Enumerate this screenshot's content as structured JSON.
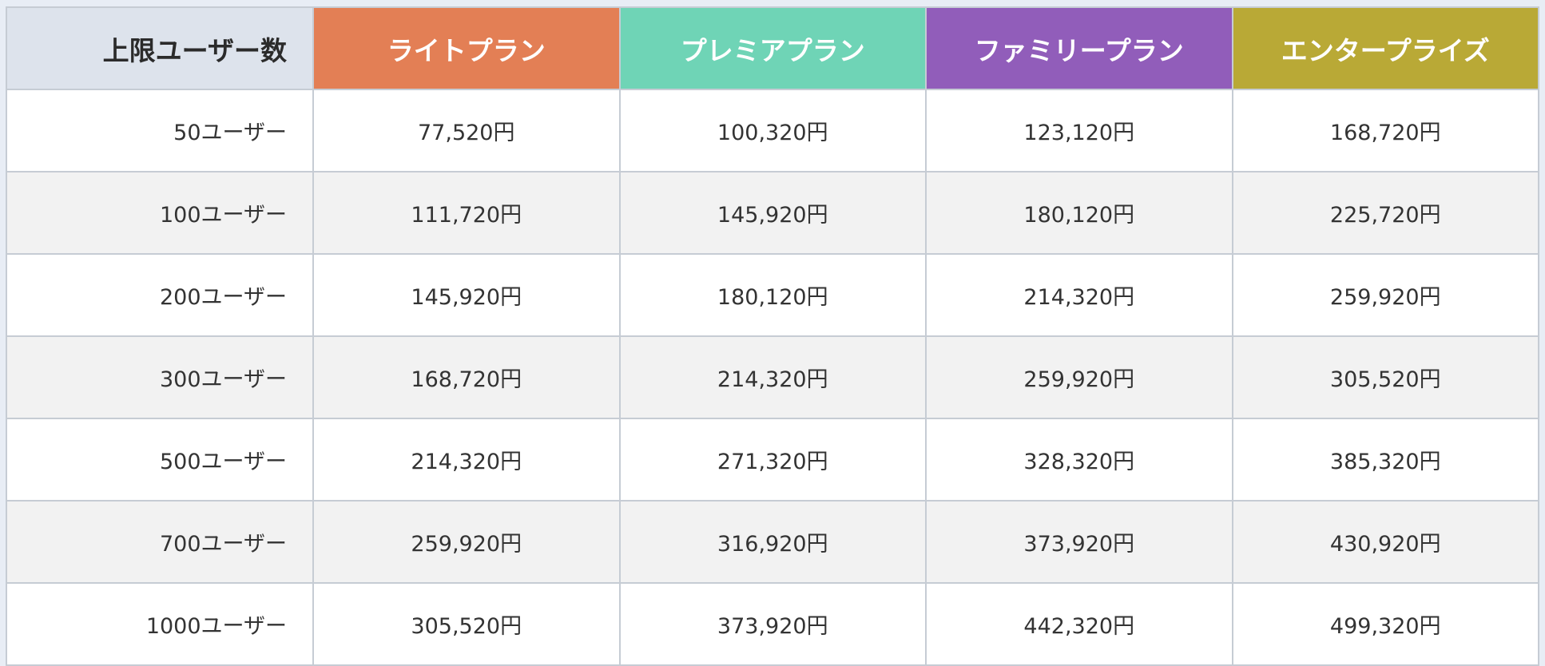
{
  "table": {
    "corner_header": "上限ユーザー数",
    "plans": [
      {
        "name": "ライトプラン",
        "color": "#e37f55"
      },
      {
        "name": "プレミアプラン",
        "color": "#6fd4b6"
      },
      {
        "name": "ファミリープラン",
        "color": "#915dba"
      },
      {
        "name": "エンタープライズ",
        "color": "#b9a936"
      }
    ],
    "rows": [
      {
        "label": "50ユーザー",
        "prices": [
          "77,520円",
          "100,320円",
          "123,120円",
          "168,720円"
        ]
      },
      {
        "label": "100ユーザー",
        "prices": [
          "111,720円",
          "145,920円",
          "180,120円",
          "225,720円"
        ]
      },
      {
        "label": "200ユーザー",
        "prices": [
          "145,920円",
          "180,120円",
          "214,320円",
          "259,920円"
        ]
      },
      {
        "label": "300ユーザー",
        "prices": [
          "168,720円",
          "214,320円",
          "259,920円",
          "305,520円"
        ]
      },
      {
        "label": "500ユーザー",
        "prices": [
          "214,320円",
          "271,320円",
          "328,320円",
          "385,320円"
        ]
      },
      {
        "label": "700ユーザー",
        "prices": [
          "259,920円",
          "316,920円",
          "373,920円",
          "430,920円"
        ]
      },
      {
        "label": "1000ユーザー",
        "prices": [
          "305,520円",
          "373,920円",
          "442,320円",
          "499,320円"
        ]
      }
    ]
  }
}
